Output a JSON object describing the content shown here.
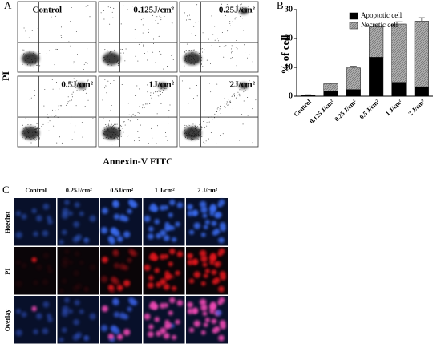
{
  "panel_labels": [
    "A",
    "B",
    "C"
  ],
  "flow": {
    "y_label": "PI",
    "x_label": "Annexin-V FITC",
    "plots": [
      "Control",
      "0.125J/cm²",
      "0.25J/cm²",
      "0.5J/cm²",
      "1J/cm²",
      "2J/cm²"
    ]
  },
  "chart_data": {
    "type": "bar",
    "stacked": true,
    "y_label": "% of cell",
    "categories": [
      "Control",
      "0.125 J/cm²",
      "0.25 J/cm²",
      "0.5 J/cm²",
      "1 J/cm²",
      "2 J/cm²"
    ],
    "series": [
      {
        "name": "Apoptotic cell",
        "color": "#000000",
        "values": [
          0.3,
          1.8,
          2.3,
          13.5,
          4.8,
          3.3
        ],
        "errors": [
          0.1,
          0.3,
          0.4,
          1.3,
          0.8,
          0.5
        ]
      },
      {
        "name": "Necrotic cell",
        "color": "#a9a9a9",
        "values": [
          0.1,
          2.5,
          7.5,
          10.5,
          20.2,
          22.7
        ],
        "errors": [
          0.1,
          0.3,
          0.6,
          0.7,
          0.8,
          1.2
        ]
      }
    ],
    "ylim": [
      0,
      30
    ],
    "yticks": [
      0,
      10,
      20,
      30
    ],
    "legend": "top"
  },
  "microscopy": {
    "columns": [
      "Control",
      "0.25J/cm²",
      "0.5J/cm²",
      "1 J/cm²",
      "2 J/cm²"
    ],
    "rows": [
      "Hoechst",
      "PI",
      "Overlay"
    ]
  }
}
